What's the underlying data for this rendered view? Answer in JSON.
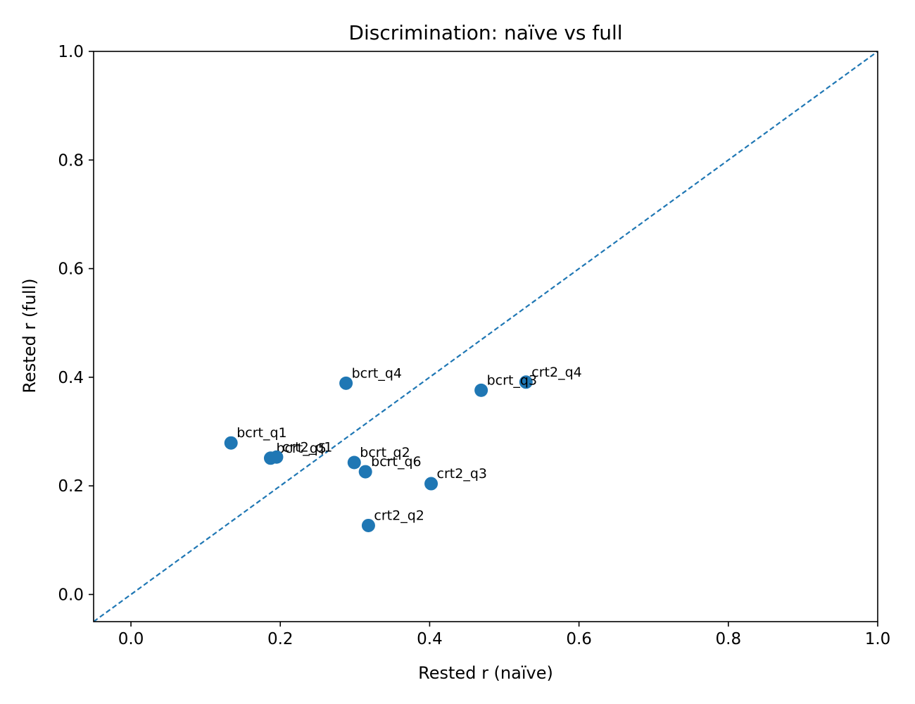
{
  "chart_data": {
    "type": "scatter",
    "title": "Discrimination: naïve vs full",
    "xlabel": "Rested r (naïve)",
    "ylabel": "Rested r (full)",
    "xlim": [
      -0.05,
      1.0
    ],
    "ylim": [
      -0.05,
      1.0
    ],
    "xticks": [
      0.0,
      0.2,
      0.4,
      0.6,
      0.8,
      1.0
    ],
    "yticks": [
      0.0,
      0.2,
      0.4,
      0.6,
      0.8,
      1.0
    ],
    "xtick_labels": [
      "0.0",
      "0.2",
      "0.4",
      "0.6",
      "0.8",
      "1.0"
    ],
    "ytick_labels": [
      "0.0",
      "0.2",
      "0.4",
      "0.6",
      "0.8",
      "1.0"
    ],
    "grid": false,
    "reference_line": {
      "style": "dashed",
      "from": [
        -0.05,
        -0.05
      ],
      "to": [
        1.0,
        1.0
      ]
    },
    "point_color": "#1f77b4",
    "points": [
      {
        "label": "bcrt_q4",
        "x": 0.288,
        "y": 0.389
      },
      {
        "label": "crt2_q4",
        "x": 0.529,
        "y": 0.391
      },
      {
        "label": "bcrt_q3",
        "x": 0.469,
        "y": 0.376
      },
      {
        "label": "bcrt_q1",
        "x": 0.134,
        "y": 0.279
      },
      {
        "label": "bcrt_q5",
        "x": 0.187,
        "y": 0.251
      },
      {
        "label": "crt2_q1",
        "x": 0.195,
        "y": 0.253
      },
      {
        "label": "bcrt_q2",
        "x": 0.299,
        "y": 0.243
      },
      {
        "label": "bcrt_q6",
        "x": 0.314,
        "y": 0.226
      },
      {
        "label": "crt2_q3",
        "x": 0.402,
        "y": 0.204
      },
      {
        "label": "crt2_q2",
        "x": 0.318,
        "y": 0.127
      }
    ]
  }
}
